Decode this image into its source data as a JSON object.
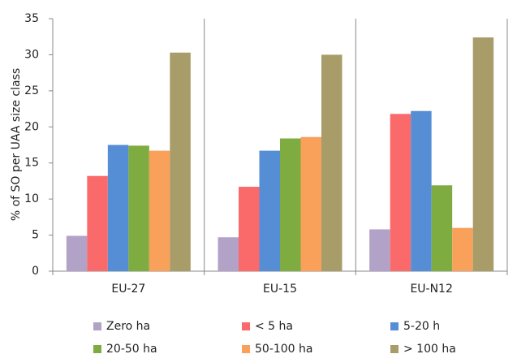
{
  "chart_data": {
    "type": "bar",
    "y_label": "% of SO per UAA size class",
    "categories": [
      "EU-27",
      "EU-15",
      "EU-N12"
    ],
    "series": [
      {
        "name": "Zero ha",
        "color": "#b3a2c7",
        "values": [
          4.9,
          4.7,
          5.8
        ]
      },
      {
        "name": "< 5 ha",
        "color": "#fa6a6a",
        "values": [
          13.2,
          11.7,
          21.8
        ]
      },
      {
        "name": "5-20 h",
        "color": "#558ed5",
        "values": [
          17.5,
          16.7,
          22.2
        ]
      },
      {
        "name": "20-50 ha",
        "color": "#7eac40",
        "values": [
          17.4,
          18.4,
          11.9
        ]
      },
      {
        "name": "50-100 ha",
        "color": "#f9a05a",
        "values": [
          16.7,
          18.6,
          6.0
        ]
      },
      {
        "name": "> 100 ha",
        "color": "#a89c68",
        "values": [
          30.3,
          30.0,
          32.4
        ]
      }
    ],
    "ylim": [
      0,
      35
    ],
    "yticks": [
      0,
      5,
      10,
      15,
      20,
      25,
      30,
      35
    ],
    "grid": false,
    "legend": "bottom"
  }
}
